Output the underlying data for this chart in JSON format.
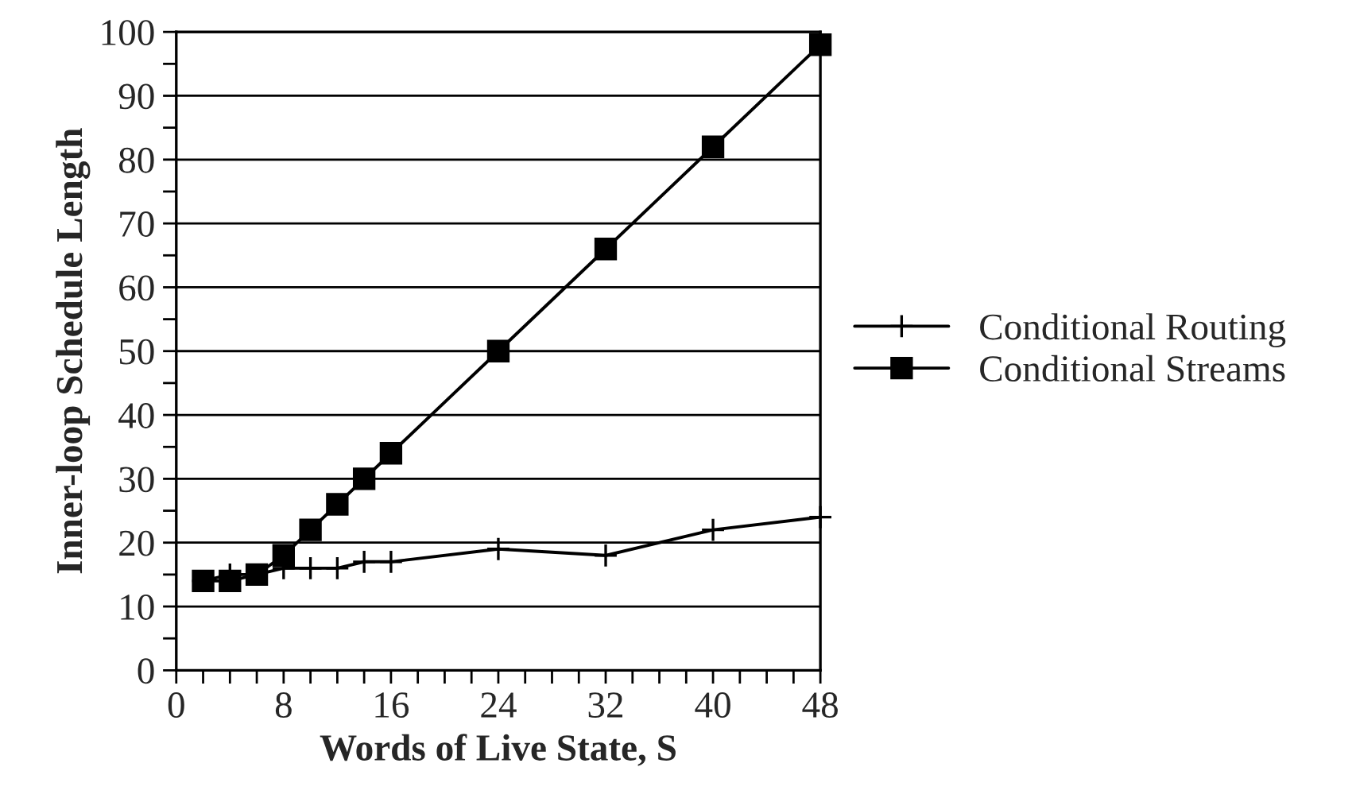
{
  "chart_data": {
    "type": "line",
    "xlabel": "Words of Live State, S",
    "ylabel": "Inner-loop Schedule Length",
    "x": [
      2,
      4,
      6,
      8,
      10,
      12,
      14,
      16,
      24,
      32,
      40,
      48
    ],
    "series": [
      {
        "name": "Conditional Routing",
        "color": "#000000",
        "marker": "cross",
        "values": [
          14,
          15,
          15,
          16,
          16,
          16,
          17,
          17,
          19,
          18,
          22,
          24
        ]
      },
      {
        "name": "Conditional Streams",
        "color": "#000000",
        "marker": "square",
        "values": [
          14,
          14,
          15,
          18,
          22,
          26,
          30,
          34,
          50,
          66,
          82,
          98
        ]
      }
    ],
    "xlim": [
      0,
      48
    ],
    "ylim": [
      0,
      100
    ],
    "xticks": [
      0,
      {
        "value": 2,
        "label": null
      },
      {
        "value": 4,
        "label": null
      },
      {
        "value": 6,
        "label": null
      },
      8,
      {
        "value": 10,
        "label": null
      },
      {
        "value": 12,
        "label": null
      },
      {
        "value": 14,
        "label": null
      },
      16,
      {
        "value": 18,
        "label": null
      },
      {
        "value": 20,
        "label": null
      },
      {
        "value": 22,
        "label": null
      },
      24,
      {
        "value": 26,
        "label": null
      },
      {
        "value": 28,
        "label": null
      },
      {
        "value": 30,
        "label": null
      },
      32,
      {
        "value": 34,
        "label": null
      },
      {
        "value": 36,
        "label": null
      },
      {
        "value": 38,
        "label": null
      },
      40,
      {
        "value": 42,
        "label": null
      },
      {
        "value": 44,
        "label": null
      },
      {
        "value": 46,
        "label": null
      },
      48
    ],
    "yticks": [
      0,
      {
        "value": 5,
        "label": null
      },
      10,
      {
        "value": 15,
        "label": null
      },
      20,
      {
        "value": 25,
        "label": null
      },
      30,
      {
        "value": 35,
        "label": null
      },
      40,
      {
        "value": 45,
        "label": null
      },
      50,
      {
        "value": 55,
        "label": null
      },
      60,
      {
        "value": 65,
        "label": null
      },
      70,
      {
        "value": 75,
        "label": null
      },
      80,
      {
        "value": 85,
        "label": null
      },
      90,
      {
        "value": 95,
        "label": null
      },
      100
    ],
    "grid": "y",
    "legend": "right",
    "line_style": "solid"
  }
}
